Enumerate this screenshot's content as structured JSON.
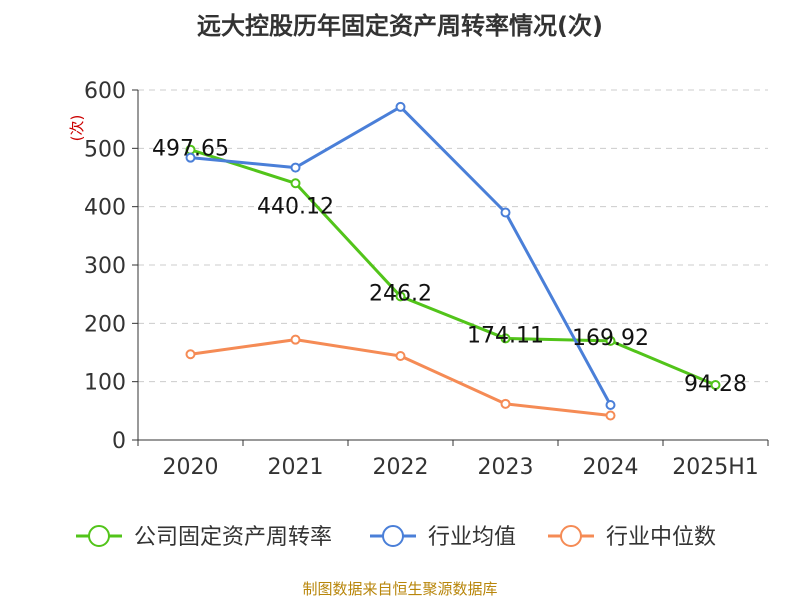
{
  "chart_data": {
    "type": "line",
    "title": "远大控股历年固定资产周转率情况(次)",
    "ylabel": "(次)",
    "xlabel": "",
    "categories": [
      "2020",
      "2021",
      "2022",
      "2023",
      "2024",
      "2025H1"
    ],
    "ylim": [
      0,
      600
    ],
    "yticks": [
      0,
      100,
      200,
      300,
      400,
      500,
      600
    ],
    "grid": true,
    "legend_position": "bottom",
    "series": [
      {
        "name": "公司固定资产周转率",
        "color": "#52c41a",
        "values": [
          497.65,
          440.12,
          246.2,
          174.11,
          169.92,
          94.28
        ],
        "labels": [
          "497.65",
          "440.12",
          "246.2",
          "174.11",
          "169.92",
          "94.28"
        ]
      },
      {
        "name": "行业均值",
        "color": "#4a7fd8",
        "values": [
          484,
          467,
          571,
          390,
          60,
          null
        ]
      },
      {
        "name": "行业中位数",
        "color": "#f58b55",
        "values": [
          147,
          172,
          144,
          62,
          42,
          null
        ]
      }
    ]
  },
  "source": "制图数据来自恒生聚源数据库"
}
